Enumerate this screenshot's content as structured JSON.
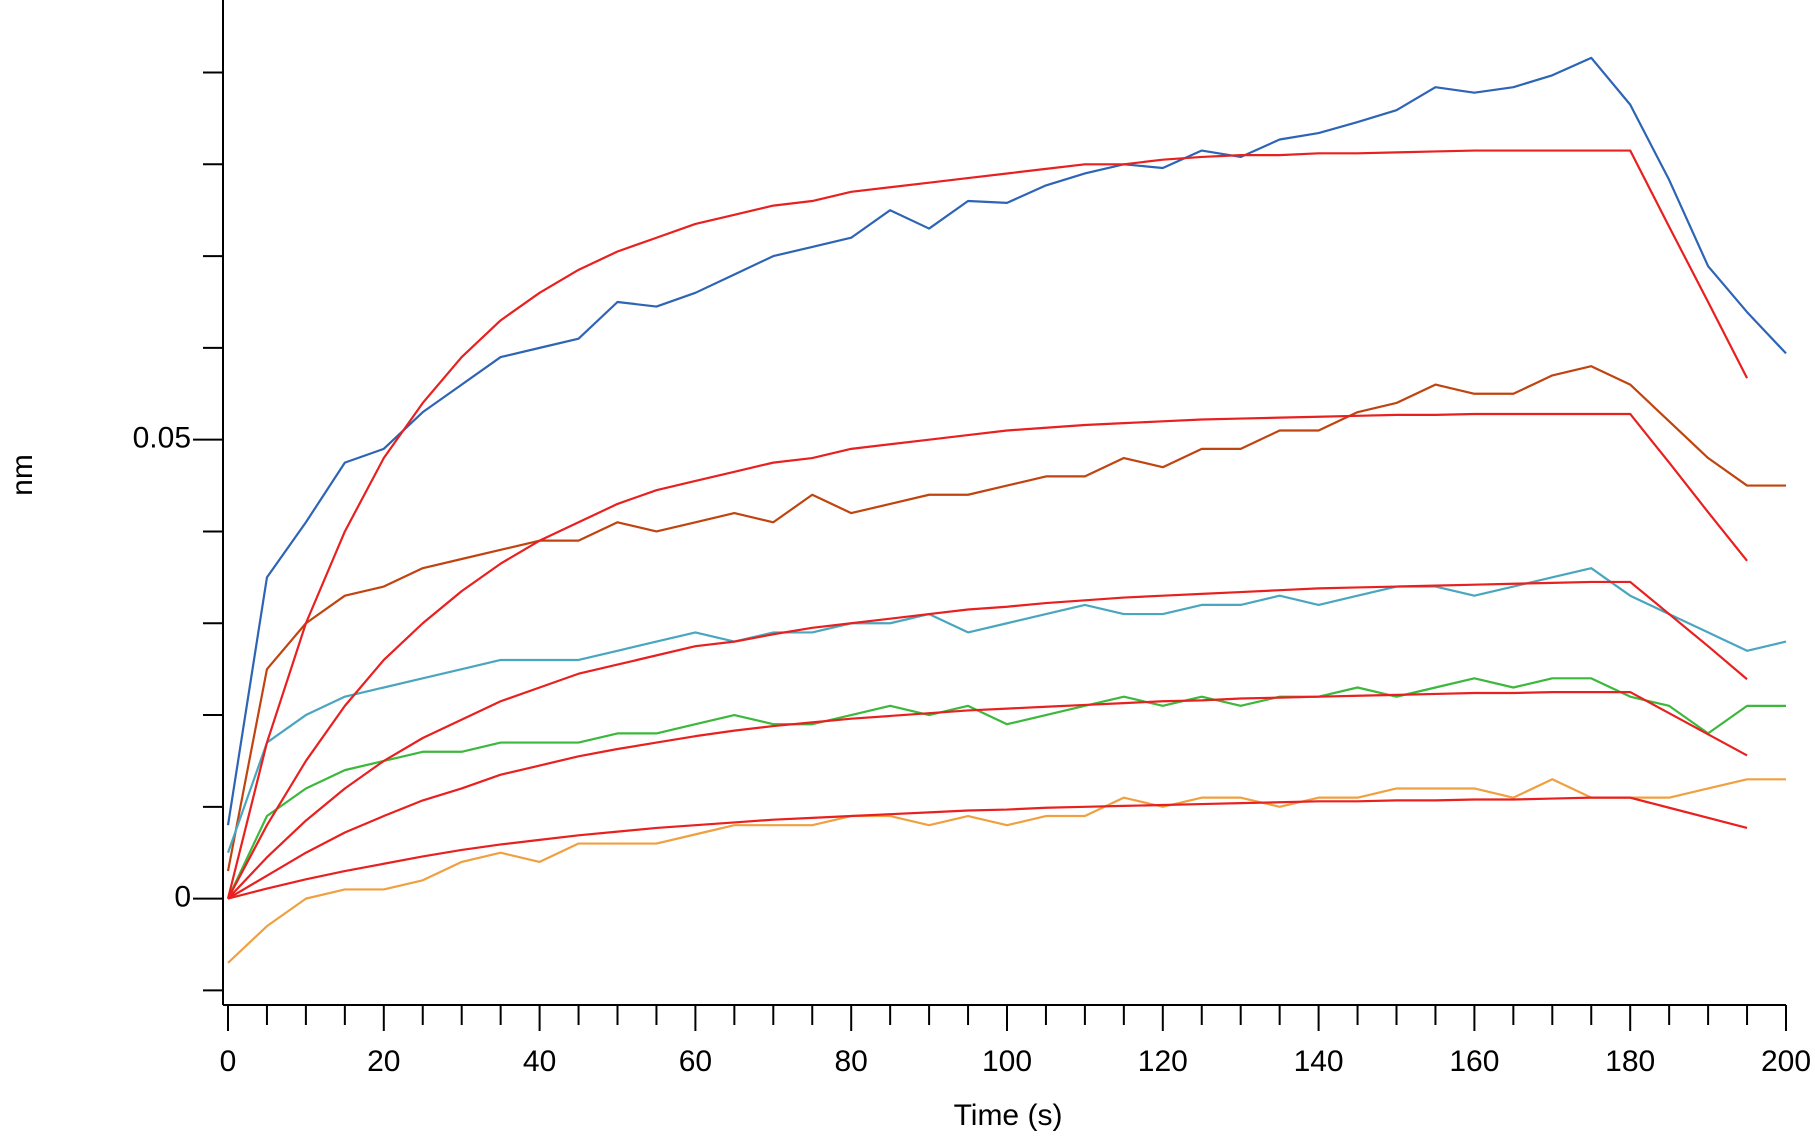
{
  "chart_data": {
    "type": "line",
    "xlabel": "Time (s)",
    "ylabel": "nm",
    "xlim": [
      0,
      200
    ],
    "ylim": [
      -0.0105,
      0.0979
    ],
    "xticks": [
      0,
      20,
      40,
      60,
      80,
      100,
      120,
      140,
      160,
      180,
      200
    ],
    "xminorticks": [
      5,
      10,
      15,
      25,
      30,
      35,
      45,
      50,
      55,
      65,
      70,
      75,
      85,
      90,
      95,
      105,
      110,
      115,
      125,
      130,
      135,
      145,
      150,
      155,
      165,
      170,
      175,
      185,
      190,
      195
    ],
    "yticks": [
      0,
      0.05
    ],
    "yminorticks": [
      -0.01,
      0.01,
      0.02,
      0.03,
      0.04,
      0.06,
      0.07,
      0.08,
      0.09
    ],
    "x": [
      0,
      5,
      10,
      15,
      20,
      25,
      30,
      35,
      40,
      45,
      50,
      55,
      60,
      65,
      70,
      75,
      80,
      85,
      90,
      95,
      100,
      105,
      110,
      115,
      120,
      125,
      130,
      135,
      140,
      145,
      150,
      155,
      160,
      165,
      170,
      175,
      180,
      185,
      190,
      195,
      200
    ],
    "series": [
      {
        "color": "#2e64b5",
        "values": [
          0.008,
          0.035,
          0.041,
          0.0475,
          0.049,
          0.053,
          0.056,
          0.059,
          0.06,
          0.061,
          0.065,
          0.0645,
          0.066,
          0.068,
          0.07,
          0.071,
          0.072,
          0.075,
          0.073,
          0.076,
          0.0758,
          0.0777,
          0.079,
          0.08,
          0.0796,
          0.0815,
          0.0808,
          0.0827,
          0.0834,
          0.0846,
          0.0859,
          0.0884,
          0.0878,
          0.0884,
          0.0897,
          0.0916,
          0.0865,
          0.0783,
          0.0689,
          0.0639,
          0.0594
        ]
      },
      {
        "color": "#c0440f",
        "values": [
          0.003,
          0.025,
          0.03,
          0.033,
          0.034,
          0.036,
          0.037,
          0.038,
          0.039,
          0.039,
          0.041,
          0.04,
          0.041,
          0.042,
          0.041,
          0.044,
          0.042,
          0.043,
          0.044,
          0.044,
          0.045,
          0.046,
          0.046,
          0.048,
          0.047,
          0.049,
          0.049,
          0.051,
          0.051,
          0.053,
          0.054,
          0.056,
          0.055,
          0.055,
          0.057,
          0.058,
          0.056,
          0.052,
          0.048,
          0.045,
          0.045
        ]
      },
      {
        "color": "#4aa6bf",
        "values": [
          0.005,
          0.017,
          0.02,
          0.022,
          0.023,
          0.024,
          0.025,
          0.026,
          0.026,
          0.026,
          0.027,
          0.028,
          0.029,
          0.028,
          0.029,
          0.029,
          0.03,
          0.03,
          0.031,
          0.029,
          0.03,
          0.031,
          0.032,
          0.031,
          0.031,
          0.032,
          0.032,
          0.033,
          0.032,
          0.033,
          0.034,
          0.034,
          0.033,
          0.034,
          0.035,
          0.036,
          0.033,
          0.031,
          0.029,
          0.027,
          0.028
        ]
      },
      {
        "color": "#3cb83c",
        "values": [
          0.0,
          0.009,
          0.012,
          0.014,
          0.015,
          0.016,
          0.016,
          0.017,
          0.017,
          0.017,
          0.018,
          0.018,
          0.019,
          0.02,
          0.019,
          0.019,
          0.02,
          0.021,
          0.02,
          0.021,
          0.019,
          0.02,
          0.021,
          0.022,
          0.021,
          0.022,
          0.021,
          0.022,
          0.022,
          0.023,
          0.022,
          0.023,
          0.024,
          0.023,
          0.024,
          0.024,
          0.022,
          0.021,
          0.018,
          0.021,
          0.021
        ]
      },
      {
        "color": "#f0a040",
        "values": [
          -0.007,
          -0.003,
          0.0,
          0.001,
          0.001,
          0.002,
          0.004,
          0.005,
          0.004,
          0.006,
          0.006,
          0.006,
          0.007,
          0.008,
          0.008,
          0.008,
          0.009,
          0.009,
          0.008,
          0.009,
          0.008,
          0.009,
          0.009,
          0.011,
          0.01,
          0.011,
          0.011,
          0.01,
          0.011,
          0.011,
          0.012,
          0.012,
          0.012,
          0.011,
          0.013,
          0.011,
          0.011,
          0.011,
          0.012,
          0.013,
          0.013
        ]
      },
      {
        "color": "#e8201f",
        "values": [
          0,
          0.017,
          0.03,
          0.04,
          0.048,
          0.054,
          0.059,
          0.063,
          0.066,
          0.0685,
          0.0705,
          0.072,
          0.0735,
          0.0745,
          0.0755,
          0.076,
          0.077,
          0.0775,
          0.078,
          0.0785,
          0.079,
          0.0795,
          0.08,
          0.08,
          0.0805,
          0.0808,
          0.081,
          0.081,
          0.0812,
          0.0812,
          0.0813,
          0.0814,
          0.0815,
          0.0815,
          0.0815,
          0.0815,
          0.0815,
          0.0732,
          0.065,
          0.0567,
          null
        ]
      },
      {
        "color": "#e8201f",
        "values": [
          0,
          0.008,
          0.015,
          0.021,
          0.026,
          0.03,
          0.0335,
          0.0365,
          0.039,
          0.041,
          0.043,
          0.0445,
          0.0455,
          0.0465,
          0.0475,
          0.048,
          0.049,
          0.0495,
          0.05,
          0.0505,
          0.051,
          0.0513,
          0.0516,
          0.0518,
          0.052,
          0.0522,
          0.0523,
          0.0524,
          0.0525,
          0.0526,
          0.0527,
          0.0527,
          0.0528,
          0.0528,
          0.0528,
          0.0528,
          0.0528,
          0.0475,
          0.0421,
          0.0368,
          null
        ]
      },
      {
        "color": "#e8201f",
        "values": [
          0,
          0.0045,
          0.0085,
          0.012,
          0.015,
          0.0175,
          0.0195,
          0.0215,
          0.023,
          0.0245,
          0.0255,
          0.0265,
          0.0275,
          0.028,
          0.0288,
          0.0295,
          0.03,
          0.0305,
          0.031,
          0.0315,
          0.0318,
          0.0322,
          0.0325,
          0.0328,
          0.033,
          0.0332,
          0.0334,
          0.0336,
          0.0338,
          0.0339,
          0.034,
          0.0341,
          0.0342,
          0.0343,
          0.0344,
          0.0345,
          0.0345,
          0.031,
          0.0275,
          0.0239,
          null
        ]
      },
      {
        "color": "#e8201f",
        "values": [
          0,
          0.0025,
          0.005,
          0.0072,
          0.009,
          0.0107,
          0.012,
          0.0135,
          0.0145,
          0.0155,
          0.0163,
          0.017,
          0.0177,
          0.0183,
          0.0188,
          0.0192,
          0.0196,
          0.0199,
          0.0202,
          0.0205,
          0.0207,
          0.0209,
          0.0211,
          0.0213,
          0.0215,
          0.0216,
          0.0218,
          0.0219,
          0.022,
          0.0221,
          0.0222,
          0.0223,
          0.0224,
          0.0224,
          0.0225,
          0.0225,
          0.0225,
          0.0202,
          0.0179,
          0.0156,
          null
        ]
      },
      {
        "color": "#e8201f",
        "values": [
          0,
          0.0011,
          0.0021,
          0.003,
          0.0038,
          0.0046,
          0.0053,
          0.0059,
          0.0064,
          0.0069,
          0.0073,
          0.0077,
          0.008,
          0.0083,
          0.0086,
          0.0088,
          0.009,
          0.0092,
          0.0094,
          0.0096,
          0.0097,
          0.0099,
          0.01,
          0.0101,
          0.0102,
          0.0103,
          0.0104,
          0.0105,
          0.0106,
          0.0106,
          0.0107,
          0.0107,
          0.0108,
          0.0108,
          0.0109,
          0.011,
          0.011,
          0.0099,
          0.0088,
          0.0077,
          null
        ]
      }
    ]
  }
}
